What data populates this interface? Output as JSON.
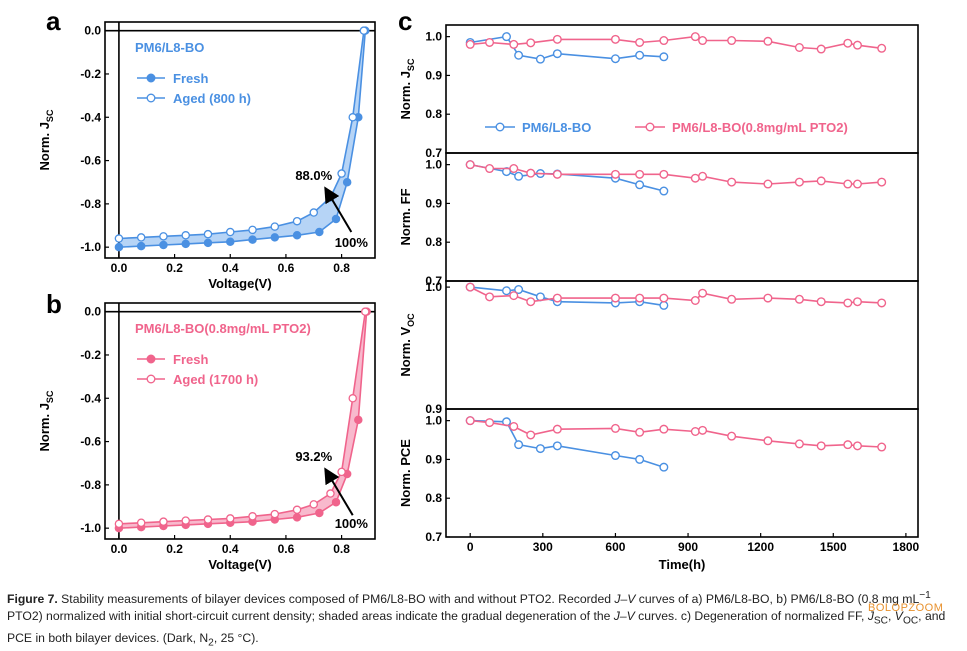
{
  "panels": {
    "a": {
      "letter": "a"
    },
    "b": {
      "letter": "b"
    },
    "c": {
      "letter": "c"
    }
  },
  "colors": {
    "blue": "#4a90e2",
    "blue_fill": "#a9cdf4",
    "pink": "#f0648c",
    "pink_fill": "#f7adc4",
    "axis": "#000000"
  },
  "chart_data": [
    {
      "id": "a",
      "type": "line",
      "legend_title": "PM6/L8-BO",
      "xlabel": "Voltage(V)",
      "ylabel_main": "Norm. J",
      "ylabel_sub": "SC",
      "xlim": [
        -0.05,
        0.92
      ],
      "ylim": [
        -1.05,
        0.04
      ],
      "xticks": [
        0.0,
        0.2,
        0.4,
        0.6,
        0.8
      ],
      "xtick_labels": [
        "0.0",
        "0.2",
        "0.4",
        "0.6",
        "0.8"
      ],
      "yticks": [
        0.0,
        -0.2,
        -0.4,
        -0.6,
        -0.8,
        -1.0
      ],
      "ytick_labels": [
        "0.0",
        "-0.2",
        "-0.4",
        "-0.6",
        "-0.8",
        "-1.0"
      ],
      "annotations": [
        {
          "text": "88.0%"
        },
        {
          "text": "100%"
        }
      ],
      "legend_position": "top-left",
      "series": [
        {
          "name": "Fresh",
          "marker": "filled",
          "x": [
            0.0,
            0.08,
            0.16,
            0.24,
            0.32,
            0.4,
            0.48,
            0.56,
            0.64,
            0.72,
            0.78,
            0.82,
            0.86,
            0.885
          ],
          "y": [
            -1.0,
            -0.995,
            -0.99,
            -0.985,
            -0.98,
            -0.975,
            -0.965,
            -0.955,
            -0.945,
            -0.93,
            -0.87,
            -0.7,
            -0.4,
            0.0
          ]
        },
        {
          "name": "Aged (800 h)",
          "marker": "open",
          "x": [
            0.0,
            0.08,
            0.16,
            0.24,
            0.32,
            0.4,
            0.48,
            0.56,
            0.64,
            0.7,
            0.76,
            0.8,
            0.84,
            0.88
          ],
          "y": [
            -0.96,
            -0.955,
            -0.95,
            -0.945,
            -0.94,
            -0.93,
            -0.92,
            -0.905,
            -0.88,
            -0.84,
            -0.77,
            -0.66,
            -0.4,
            0.0
          ]
        }
      ]
    },
    {
      "id": "b",
      "type": "line",
      "legend_title": "PM6/L8-BO(0.8mg/mL PTO2)",
      "xlabel": "Voltage(V)",
      "ylabel_main": "Norm. J",
      "ylabel_sub": "SC",
      "xlim": [
        -0.05,
        0.92
      ],
      "ylim": [
        -1.05,
        0.04
      ],
      "xticks": [
        0.0,
        0.2,
        0.4,
        0.6,
        0.8
      ],
      "xtick_labels": [
        "0.0",
        "0.2",
        "0.4",
        "0.6",
        "0.8"
      ],
      "yticks": [
        0.0,
        -0.2,
        -0.4,
        -0.6,
        -0.8,
        -1.0
      ],
      "ytick_labels": [
        "0.0",
        "-0.2",
        "-0.4",
        "-0.6",
        "-0.8",
        "-1.0"
      ],
      "annotations": [
        {
          "text": "93.2%"
        },
        {
          "text": "100%"
        }
      ],
      "legend_position": "top-left",
      "series": [
        {
          "name": "Fresh",
          "marker": "filled",
          "x": [
            0.0,
            0.08,
            0.16,
            0.24,
            0.32,
            0.4,
            0.48,
            0.56,
            0.64,
            0.72,
            0.78,
            0.82,
            0.86,
            0.89
          ],
          "y": [
            -1.0,
            -0.995,
            -0.99,
            -0.985,
            -0.98,
            -0.975,
            -0.97,
            -0.96,
            -0.95,
            -0.93,
            -0.88,
            -0.75,
            -0.5,
            0.0
          ]
        },
        {
          "name": "Aged (1700 h)",
          "marker": "open",
          "x": [
            0.0,
            0.08,
            0.16,
            0.24,
            0.32,
            0.4,
            0.48,
            0.56,
            0.64,
            0.7,
            0.76,
            0.8,
            0.84,
            0.885
          ],
          "y": [
            -0.98,
            -0.975,
            -0.97,
            -0.965,
            -0.96,
            -0.955,
            -0.945,
            -0.935,
            -0.915,
            -0.89,
            -0.84,
            -0.74,
            -0.4,
            0.0
          ]
        }
      ]
    },
    {
      "id": "c",
      "type": "line",
      "xlabel": "Time(h)",
      "xlim": [
        -100,
        1850
      ],
      "xticks": [
        0,
        300,
        600,
        900,
        1200,
        1500,
        1800
      ],
      "xtick_labels": [
        "0",
        "300",
        "600",
        "900",
        "1200",
        "1500",
        "1800"
      ],
      "legend_position": "inside-first-subplot-bottom",
      "series_names": [
        "PM6/L8-BO",
        "PM6/L8-BO(0.8mg/mL PTO2)"
      ],
      "subplots": [
        {
          "ylabel_main": "Norm. J",
          "ylabel_sub": "SC",
          "ylim": [
            0.7,
            1.03
          ],
          "yticks": [
            0.7,
            0.8,
            0.9,
            1.0
          ],
          "ytick_labels": [
            "0.7",
            "0.8",
            "0.9",
            "1.0"
          ],
          "series": [
            {
              "x": [
                0,
                150,
                200,
                290,
                360,
                600,
                700,
                800
              ],
              "y": [
                0.985,
                1.0,
                0.952,
                0.942,
                0.956,
                0.943,
                0.952,
                0.948
              ]
            },
            {
              "x": [
                0,
                80,
                180,
                250,
                360,
                600,
                700,
                800,
                930,
                960,
                1080,
                1230,
                1360,
                1450,
                1560,
                1600,
                1700
              ],
              "y": [
                0.98,
                0.985,
                0.98,
                0.984,
                0.993,
                0.993,
                0.985,
                0.99,
                1.0,
                0.99,
                0.99,
                0.988,
                0.972,
                0.968,
                0.983,
                0.978,
                0.97
              ]
            }
          ]
        },
        {
          "ylabel_main": "Norm. FF",
          "ylabel_sub": "",
          "ylim": [
            0.7,
            1.03
          ],
          "yticks": [
            0.7,
            0.8,
            0.9,
            1.0
          ],
          "ytick_labels": [
            "0.7",
            "0.8",
            "0.9",
            "1.0"
          ],
          "series": [
            {
              "x": [
                0,
                150,
                200,
                290,
                360,
                600,
                700,
                800
              ],
              "y": [
                1.0,
                0.982,
                0.97,
                0.977,
                0.976,
                0.965,
                0.948,
                0.932
              ]
            },
            {
              "x": [
                0,
                80,
                180,
                250,
                360,
                600,
                700,
                800,
                930,
                960,
                1080,
                1230,
                1360,
                1450,
                1560,
                1600,
                1700
              ],
              "y": [
                1.0,
                0.99,
                0.99,
                0.978,
                0.975,
                0.975,
                0.975,
                0.975,
                0.965,
                0.97,
                0.955,
                0.95,
                0.955,
                0.958,
                0.95,
                0.95,
                0.955
              ]
            }
          ]
        },
        {
          "ylabel_main": "Norm. V",
          "ylabel_sub": "OC",
          "ylim": [
            0.9,
            1.005
          ],
          "yticks": [
            0.9,
            1.0
          ],
          "ytick_labels": [
            "0.9",
            "1.0"
          ],
          "series": [
            {
              "x": [
                0,
                150,
                200,
                290,
                360,
                600,
                700,
                800
              ],
              "y": [
                1.0,
                0.997,
                0.998,
                0.992,
                0.988,
                0.987,
                0.988,
                0.985
              ]
            },
            {
              "x": [
                0,
                80,
                180,
                250,
                360,
                600,
                700,
                800,
                930,
                960,
                1080,
                1230,
                1360,
                1450,
                1560,
                1600,
                1700
              ],
              "y": [
                1.0,
                0.992,
                0.993,
                0.988,
                0.991,
                0.991,
                0.991,
                0.991,
                0.989,
                0.995,
                0.99,
                0.991,
                0.99,
                0.988,
                0.987,
                0.988,
                0.987
              ]
            }
          ]
        },
        {
          "ylabel_main": "Norm. PCE",
          "ylabel_sub": "",
          "ylim": [
            0.7,
            1.03
          ],
          "yticks": [
            0.7,
            0.8,
            0.9,
            1.0
          ],
          "ytick_labels": [
            "0.7",
            "0.8",
            "0.9",
            "1.0"
          ],
          "series": [
            {
              "x": [
                0,
                150,
                200,
                290,
                360,
                600,
                700,
                800
              ],
              "y": [
                1.0,
                0.997,
                0.938,
                0.928,
                0.935,
                0.91,
                0.9,
                0.88
              ]
            },
            {
              "x": [
                0,
                80,
                180,
                250,
                360,
                600,
                700,
                800,
                930,
                960,
                1080,
                1230,
                1360,
                1450,
                1560,
                1600,
                1700
              ],
              "y": [
                1.0,
                0.995,
                0.985,
                0.963,
                0.978,
                0.98,
                0.97,
                0.978,
                0.972,
                0.975,
                0.96,
                0.948,
                0.94,
                0.935,
                0.938,
                0.935,
                0.932
              ]
            }
          ]
        }
      ]
    }
  ],
  "caption": {
    "label": "Figure 7.",
    "part1": " Stability measurements of bilayer devices composed of PM6/L8-BO with and without PTO2. Recorded ",
    "jv": "J–V",
    "part2": " curves of a) PM6/L8-BO, b) PM6/L8-BO (0.8 mg mL",
    "sup": "−1",
    "part3": " PTO2) normalized with initial short-circuit current density; shaded areas indicate the gradual degeneration of the ",
    "jv2": "J–V",
    "part4": " curves. c) Degeneration of normalized FF, ",
    "j": "J",
    "jsub": "SC",
    "part5": ", ",
    "v": "V",
    "vsub": "OC",
    "part6": ", and PCE in both bilayer devices. (Dark, N",
    "n2": "2",
    "part7": ", 25 °C)."
  },
  "watermark": "BOLOPZOOM"
}
